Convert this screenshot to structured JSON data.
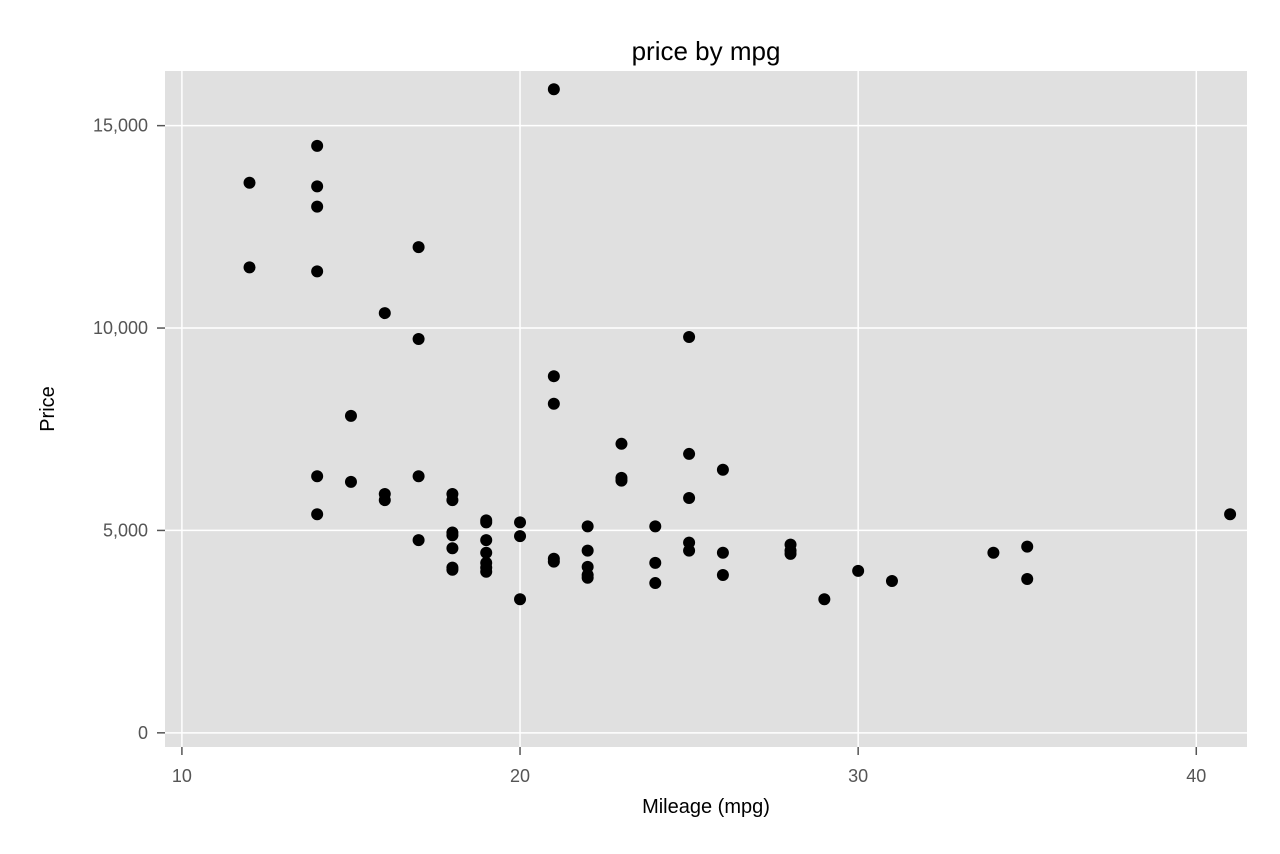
{
  "chart_data": {
    "type": "scatter",
    "title": "price by mpg",
    "xlabel": "Mileage (mpg)",
    "ylabel": "Price",
    "xlim": [
      9.5,
      41.5
    ],
    "ylim": [
      -350,
      16350
    ],
    "xticks": [
      10,
      20,
      30,
      40
    ],
    "xtick_labels": [
      "10",
      "20",
      "30",
      "40"
    ],
    "yticks": [
      0,
      5000,
      10000,
      15000
    ],
    "ytick_labels": [
      "0",
      "5,000",
      "10,000",
      "15,000"
    ],
    "grid": true,
    "legend": "none",
    "colors": {
      "plot_bg": "#e0e0e0",
      "grid": "#ffffff",
      "marker": "#000000",
      "tick": "#555555"
    },
    "series": [
      {
        "points": [
          [
            12,
            13590
          ],
          [
            12,
            11500
          ],
          [
            14,
            14500
          ],
          [
            14,
            13500
          ],
          [
            14,
            13000
          ],
          [
            14,
            11400
          ],
          [
            14,
            6340
          ],
          [
            14,
            5400
          ],
          [
            15,
            7830
          ],
          [
            15,
            6200
          ],
          [
            16,
            10370
          ],
          [
            16,
            5900
          ],
          [
            16,
            5750
          ],
          [
            17,
            12000
          ],
          [
            17,
            9730
          ],
          [
            17,
            6340
          ],
          [
            17,
            4760
          ],
          [
            18,
            5900
          ],
          [
            18,
            5750
          ],
          [
            18,
            4950
          ],
          [
            18,
            4880
          ],
          [
            18,
            4560
          ],
          [
            18,
            4080
          ],
          [
            18,
            4030
          ],
          [
            19,
            5250
          ],
          [
            19,
            5200
          ],
          [
            19,
            4760
          ],
          [
            19,
            4450
          ],
          [
            19,
            4200
          ],
          [
            19,
            4080
          ],
          [
            19,
            3980
          ],
          [
            20,
            5200
          ],
          [
            20,
            4860
          ],
          [
            20,
            3300
          ],
          [
            21,
            15900
          ],
          [
            21,
            8810
          ],
          [
            21,
            8130
          ],
          [
            21,
            4300
          ],
          [
            21,
            4230
          ],
          [
            22,
            5100
          ],
          [
            22,
            4500
          ],
          [
            22,
            4100
          ],
          [
            22,
            3900
          ],
          [
            22,
            3830
          ],
          [
            23,
            7140
          ],
          [
            23,
            6300
          ],
          [
            23,
            6230
          ],
          [
            24,
            5100
          ],
          [
            24,
            4200
          ],
          [
            24,
            3700
          ],
          [
            25,
            9780
          ],
          [
            25,
            6890
          ],
          [
            25,
            5800
          ],
          [
            25,
            4700
          ],
          [
            25,
            4500
          ],
          [
            26,
            6500
          ],
          [
            26,
            4450
          ],
          [
            26,
            3900
          ],
          [
            28,
            4650
          ],
          [
            28,
            4500
          ],
          [
            28,
            4420
          ],
          [
            29,
            3300
          ],
          [
            30,
            4000
          ],
          [
            31,
            3750
          ],
          [
            34,
            4450
          ],
          [
            35,
            4600
          ],
          [
            35,
            3800
          ],
          [
            41,
            5400
          ]
        ]
      }
    ]
  }
}
